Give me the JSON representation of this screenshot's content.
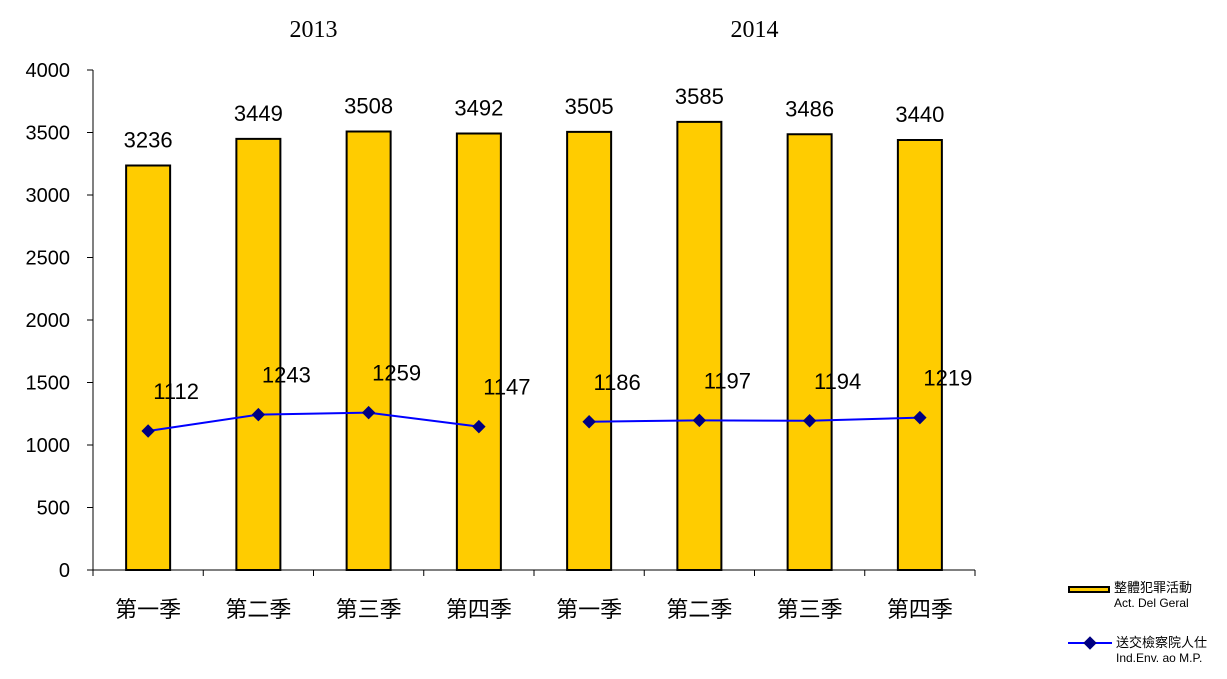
{
  "chart_data": {
    "type": "bar",
    "year_labels": [
      "2013",
      "2014"
    ],
    "categories": [
      "第一季",
      "第二季",
      "第三季",
      "第四季",
      "第一季",
      "第二季",
      "第三季",
      "第四季"
    ],
    "ylim": [
      0,
      4000
    ],
    "yticks": [
      "0",
      "500",
      "1000",
      "1500",
      "2000",
      "2500",
      "3000",
      "3500",
      "4000"
    ],
    "grid": false,
    "legend_position": "bottom-right",
    "series": [
      {
        "name": "整體犯罪活動",
        "name_sub": "Act. Del Geral",
        "kind": "bar",
        "color": "#FFCC00",
        "values": [
          3236,
          3449,
          3508,
          3492,
          3505,
          3585,
          3486,
          3440
        ]
      },
      {
        "name": "送交檢察院人仕",
        "name_sub": "Ind.Env. ao M.P.",
        "kind": "line",
        "color": "#0000FF",
        "marker_color": "#000080",
        "values": [
          1112,
          1243,
          1259,
          1147,
          1186,
          1197,
          1194,
          1219
        ]
      }
    ]
  }
}
